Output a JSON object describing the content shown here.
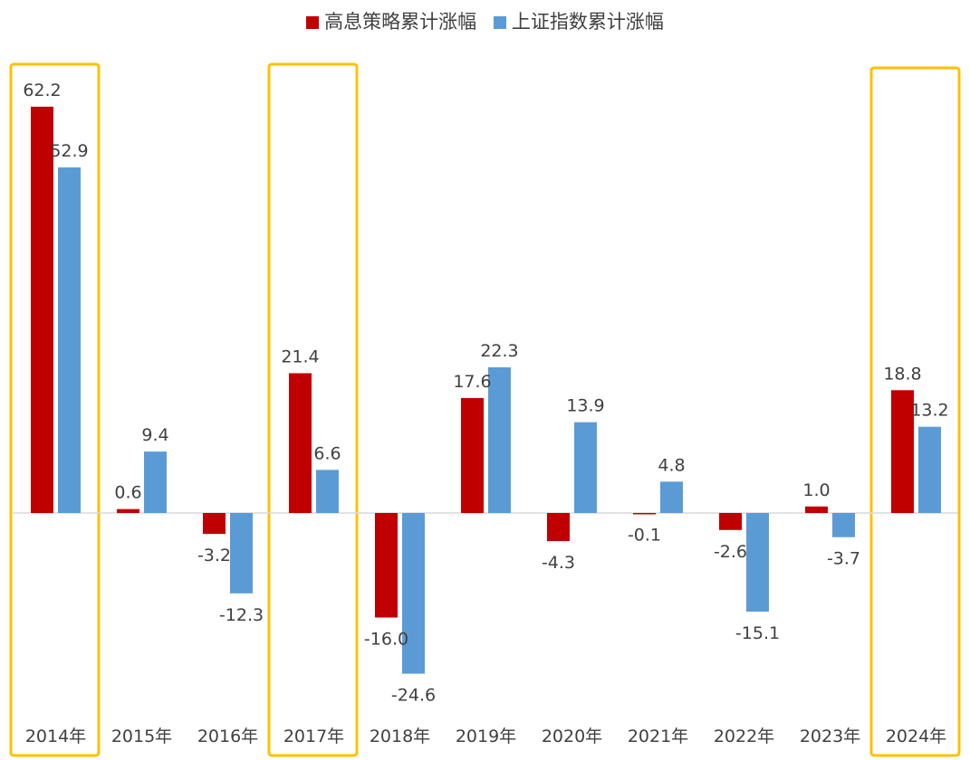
{
  "chart_data": {
    "type": "bar",
    "categories": [
      "2014年",
      "2015年",
      "2016年",
      "2017年",
      "2018年",
      "2019年",
      "2020年",
      "2021年",
      "2022年",
      "2023年",
      "2024年"
    ],
    "series": [
      {
        "name": "高息策略累计涨幅",
        "color": "#C00000",
        "values": [
          62.2,
          0.6,
          -3.2,
          21.4,
          -16.0,
          17.6,
          -4.3,
          -0.1,
          -2.6,
          1.0,
          18.8
        ],
        "labels": [
          "62.2",
          "0.6",
          "-3.2",
          "21.4",
          "-16.0",
          "17.6",
          "-4.3",
          "-0.1",
          "-2.6",
          "1.0",
          "18.8"
        ]
      },
      {
        "name": "上证指数累计涨幅",
        "color": "#5B9BD5",
        "values": [
          52.9,
          9.4,
          -12.3,
          6.6,
          -24.6,
          22.3,
          13.9,
          4.8,
          -15.1,
          -3.7,
          13.2
        ],
        "labels": [
          "52.9",
          "9.4",
          "-12.3",
          "6.6",
          "-24.6",
          "22.3",
          "13.9",
          "4.8",
          "-15.1",
          "-3.7",
          "13.2"
        ]
      }
    ],
    "highlighted_categories": [
      "2014年",
      "2017年",
      "2024年"
    ],
    "highlight_color": "#FFC000",
    "legend_position": "top",
    "grid": false
  }
}
